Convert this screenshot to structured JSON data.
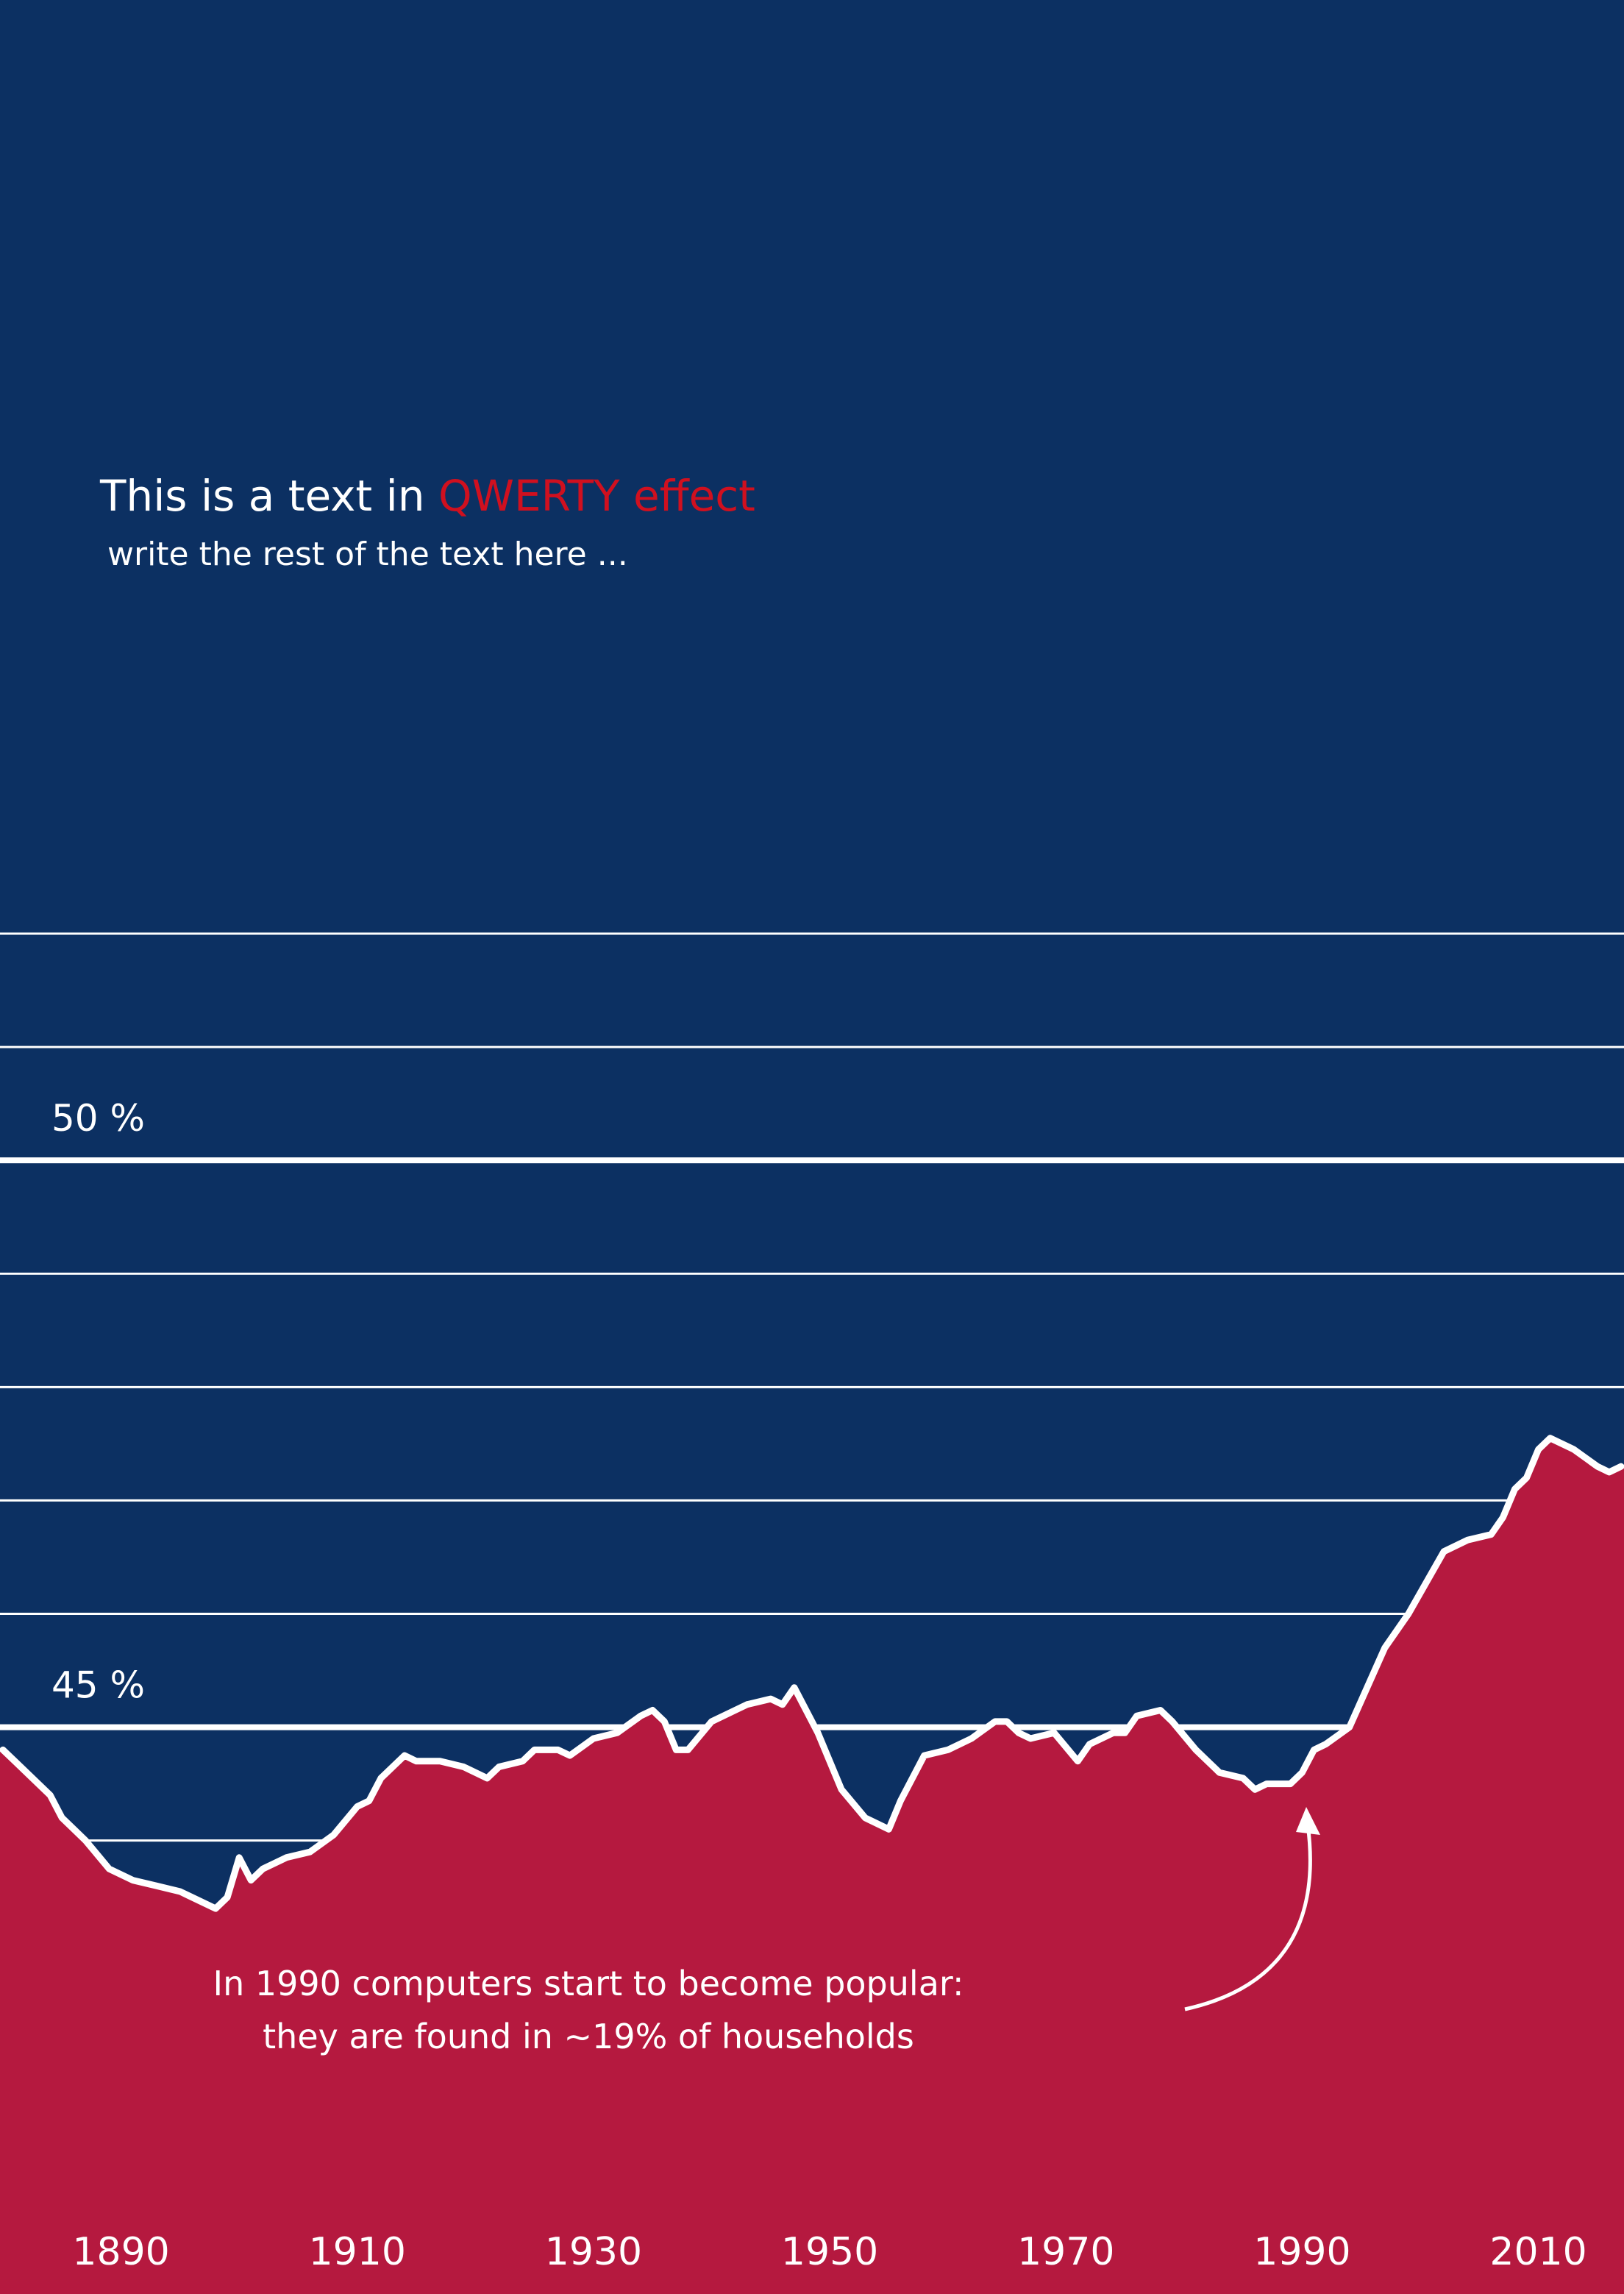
{
  "chart_data": {
    "type": "area",
    "title": "This is a text in",
    "title_highlight": "QWERTY effect",
    "subtitle": "write the rest of the text here ...",
    "annotation": [
      "In 1990 computers start to become popular:",
      "they are found in ~19% of households"
    ],
    "color": "#b5193f",
    "line_color": "#ffffff",
    "highlight_color": "#d0101f",
    "grid": true,
    "xlim": [
      1880,
      2017
    ],
    "xticks": [
      1890,
      1910,
      1930,
      1950,
      1970,
      1990,
      2010
    ],
    "ylim": [
      40,
      52
    ],
    "yticks": [
      {
        "value": 44,
        "label": null
      },
      {
        "value": 45,
        "label": "45 %"
      },
      {
        "value": 46,
        "label": null
      },
      {
        "value": 47,
        "label": null
      },
      {
        "value": 48,
        "label": null
      },
      {
        "value": 49,
        "label": null
      },
      {
        "value": 50,
        "label": "50 %"
      },
      {
        "value": 51,
        "label": null
      },
      {
        "value": 52,
        "label": null
      }
    ],
    "x": [
      1880,
      1881,
      1883,
      1884,
      1885,
      1886,
      1887,
      1889,
      1891,
      1893,
      1895,
      1898,
      1899,
      1900,
      1901,
      1902,
      1904,
      1906,
      1908,
      1910,
      1911,
      1912,
      1914,
      1915,
      1917,
      1919,
      1921,
      1922,
      1924,
      1925,
      1927,
      1928,
      1930,
      1932,
      1934,
      1935,
      1936,
      1937,
      1938,
      1940,
      1942,
      1943,
      1945,
      1946,
      1947,
      1949,
      1951,
      1953,
      1955,
      1956,
      1958,
      1960,
      1962,
      1964,
      1965,
      1966,
      1967,
      1969,
      1971,
      1972,
      1974,
      1975,
      1976,
      1978,
      1979,
      1981,
      1983,
      1985,
      1986,
      1987,
      1989,
      1990,
      1991,
      1992,
      1994,
      1997,
      1999,
      2002,
      2004,
      2006,
      2007,
      2008,
      2009,
      2010,
      2011,
      2013,
      2015,
      2016,
      2017
    ],
    "values": [
      44.8,
      44.7,
      44.5,
      44.4,
      44.2,
      44.1,
      44.0,
      43.75,
      43.65,
      43.6,
      43.55,
      43.4,
      43.5,
      43.85,
      43.65,
      43.75,
      43.85,
      43.9,
      44.05,
      44.3,
      44.35,
      44.55,
      44.75,
      44.7,
      44.7,
      44.65,
      44.55,
      44.65,
      44.7,
      44.8,
      44.8,
      44.75,
      44.9,
      44.95,
      45.1,
      45.15,
      45.05,
      44.8,
      44.8,
      45.05,
      45.15,
      45.2,
      45.25,
      45.2,
      45.35,
      44.95,
      44.45,
      44.2,
      44.1,
      44.35,
      44.75,
      44.8,
      44.9,
      45.05,
      45.05,
      44.95,
      44.9,
      44.95,
      44.7,
      44.85,
      44.95,
      44.95,
      45.1,
      45.15,
      45.05,
      44.8,
      44.6,
      44.55,
      44.45,
      44.5,
      44.5,
      44.6,
      44.8,
      44.85,
      45.0,
      45.7,
      46.0,
      46.55,
      46.65,
      46.7,
      46.85,
      47.1,
      47.2,
      47.45,
      47.55,
      47.45,
      47.3,
      47.25,
      47.3
    ]
  }
}
